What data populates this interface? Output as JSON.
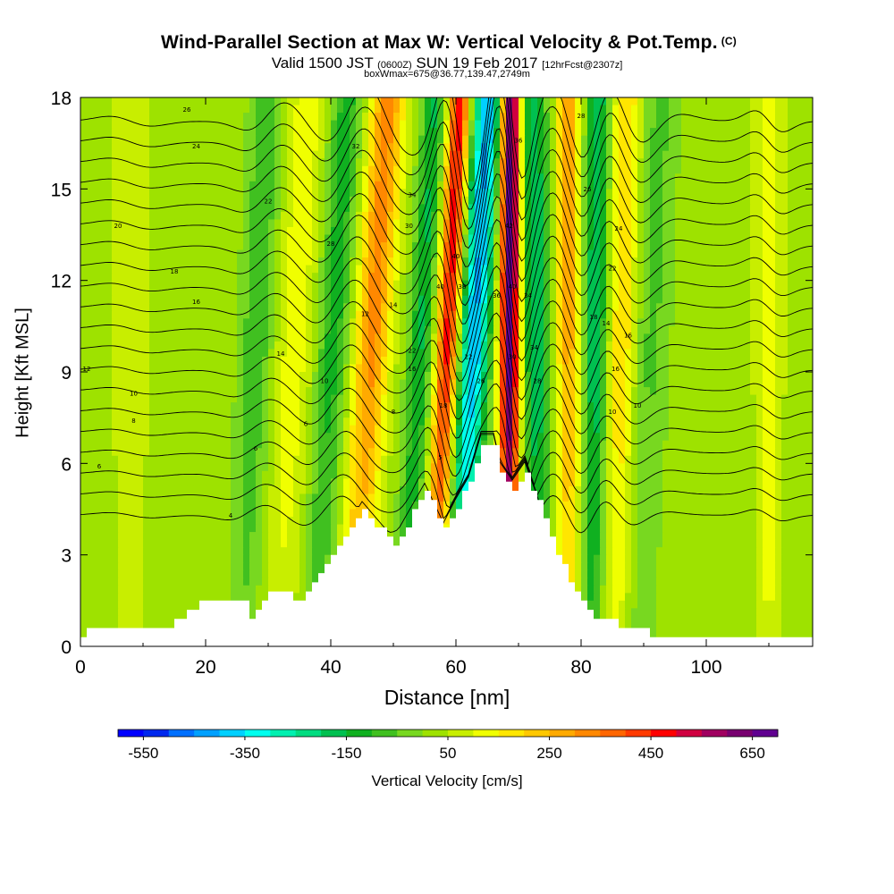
{
  "title": {
    "main": "Wind-Parallel Section at Max W: Vertical Velocity & Pot.Temp.",
    "copyright": "(C)",
    "line2_a": "Valid 1500 JST",
    "line2_b": "(0600Z)",
    "line2_c": "SUN 19 Feb 2017",
    "line2_d": "[12hrFcst@2307z]",
    "line3": "boxWmax=675@36.77,139.47,2749m"
  },
  "chart_data": {
    "type": "heatmap",
    "title": "Wind-Parallel Section at Max W: Vertical Velocity & Pot.Temp.",
    "xlabel": "Distance [nm]",
    "ylabel": "Height [Kft MSL]",
    "xlim": [
      0,
      117
    ],
    "ylim": [
      0,
      18
    ],
    "x_ticks": [
      0,
      20,
      40,
      60,
      80,
      100
    ],
    "y_ticks": [
      0,
      3,
      6,
      9,
      12,
      15,
      18
    ],
    "terrain_kft": {
      "x": [
        0,
        2,
        13,
        16,
        20,
        26,
        27,
        31,
        35,
        38,
        42,
        45,
        50,
        55,
        58,
        60,
        62,
        64,
        66,
        67,
        69,
        71,
        74,
        78,
        82,
        88,
        92,
        95,
        100,
        117
      ],
      "h": [
        0.3,
        0.6,
        0.6,
        1.0,
        1.6,
        1.6,
        0.9,
        1.9,
        1.5,
        2.5,
        3.5,
        4.5,
        3.3,
        5.1,
        3.8,
        4.6,
        5.3,
        6.7,
        6.7,
        5.8,
        5.2,
        5.8,
        4.1,
        2.1,
        1.0,
        0.6,
        0.3,
        0.3,
        0.3,
        0.3
      ]
    },
    "vertical_velocity_cms": {
      "note": "tilted updraft/downdraft bands: x position at base, tilt in nm per kft, peak value",
      "bands": [
        {
          "x_base": 8,
          "tilt": 0.0,
          "width": 3.0,
          "peak": 60
        },
        {
          "x_base": 27,
          "tilt": 0.22,
          "width": 2.6,
          "peak": -120
        },
        {
          "x_base": 33,
          "tilt": 0.25,
          "width": 3.0,
          "peak": 110
        },
        {
          "x_base": 39,
          "tilt": 0.28,
          "width": 2.6,
          "peak": -150
        },
        {
          "x_base": 45,
          "tilt": 0.32,
          "width": 2.8,
          "peak": 300
        },
        {
          "x_base": 53,
          "tilt": 0.28,
          "width": 2.0,
          "peak": -180
        },
        {
          "x_base": 57.5,
          "tilt": 0.24,
          "width": 1.8,
          "peak": 460
        },
        {
          "x_base": 61.5,
          "tilt": 0.28,
          "width": 2.4,
          "peak": -430
        },
        {
          "x_base": 68.5,
          "tilt": 0.02,
          "width": 1.6,
          "peak": 675
        },
        {
          "x_base": 73,
          "tilt": -0.05,
          "width": 2.2,
          "peak": -220
        },
        {
          "x_base": 78,
          "tilt": 0.0,
          "width": 2.0,
          "peak": 250
        },
        {
          "x_base": 82,
          "tilt": 0.05,
          "width": 2.0,
          "peak": -230
        },
        {
          "x_base": 86,
          "tilt": 0.1,
          "width": 2.4,
          "peak": 180
        },
        {
          "x_base": 90,
          "tilt": 0.2,
          "width": 3.0,
          "peak": -90
        },
        {
          "x_base": 110,
          "tilt": 0.0,
          "width": 2.0,
          "peak": 130
        }
      ],
      "max": 675
    },
    "potential_temperature_contours_c": {
      "interval": 2,
      "levels": [
        4,
        6,
        8,
        10,
        12,
        14,
        16,
        18,
        20,
        22,
        24,
        26,
        28,
        30,
        32,
        34,
        36,
        38,
        40,
        42
      ],
      "labels": [
        {
          "text": "26",
          "x": 17,
          "y": 17.6
        },
        {
          "text": "24",
          "x": 18.5,
          "y": 16.4
        },
        {
          "text": "22",
          "x": 30,
          "y": 14.6
        },
        {
          "text": "20",
          "x": 6,
          "y": 13.8
        },
        {
          "text": "18",
          "x": 15,
          "y": 12.3
        },
        {
          "text": "16",
          "x": 18.5,
          "y": 11.3
        },
        {
          "text": "14",
          "x": 32,
          "y": 9.6
        },
        {
          "text": "12",
          "x": 1,
          "y": 9.1
        },
        {
          "text": "10",
          "x": 8.5,
          "y": 8.3
        },
        {
          "text": "8",
          "x": 8.5,
          "y": 7.4
        },
        {
          "text": "6",
          "x": 28,
          "y": 6.5
        },
        {
          "text": "6",
          "x": 3,
          "y": 5.9
        },
        {
          "text": "4",
          "x": 24,
          "y": 4.3
        },
        {
          "text": "32",
          "x": 44,
          "y": 16.4
        },
        {
          "text": "34",
          "x": 53,
          "y": 14.8
        },
        {
          "text": "30",
          "x": 52.5,
          "y": 13.8
        },
        {
          "text": "28",
          "x": 40,
          "y": 13.2
        },
        {
          "text": "36",
          "x": 70,
          "y": 16.6
        },
        {
          "text": "40",
          "x": 60,
          "y": 12.8
        },
        {
          "text": "42",
          "x": 68.5,
          "y": 13.8
        },
        {
          "text": "40",
          "x": 57.5,
          "y": 11.8
        },
        {
          "text": "38",
          "x": 61,
          "y": 11.8
        },
        {
          "text": "36",
          "x": 66.5,
          "y": 11.5
        },
        {
          "text": "40",
          "x": 69,
          "y": 11.8
        },
        {
          "text": "34",
          "x": 71.5,
          "y": 11.5
        },
        {
          "text": "28",
          "x": 80,
          "y": 17.4
        },
        {
          "text": "26",
          "x": 81,
          "y": 15
        },
        {
          "text": "24",
          "x": 86,
          "y": 13.7
        },
        {
          "text": "22",
          "x": 85,
          "y": 12.4
        },
        {
          "text": "18",
          "x": 82,
          "y": 10.8
        },
        {
          "text": "14",
          "x": 84,
          "y": 10.6
        },
        {
          "text": "16",
          "x": 87.5,
          "y": 10.2
        },
        {
          "text": "14",
          "x": 50,
          "y": 11.2
        },
        {
          "text": "22",
          "x": 53,
          "y": 9.7
        },
        {
          "text": "16",
          "x": 53,
          "y": 9.1
        },
        {
          "text": "12",
          "x": 45.5,
          "y": 10.9
        },
        {
          "text": "10",
          "x": 39,
          "y": 8.7
        },
        {
          "text": "8",
          "x": 50,
          "y": 7.7
        },
        {
          "text": "6",
          "x": 36,
          "y": 7.3
        },
        {
          "text": "18",
          "x": 58,
          "y": 7.9
        },
        {
          "text": "22",
          "x": 62,
          "y": 9.5
        },
        {
          "text": "26",
          "x": 64,
          "y": 8.7
        },
        {
          "text": "34",
          "x": 72.5,
          "y": 9.8
        },
        {
          "text": "30",
          "x": 69,
          "y": 9.5
        },
        {
          "text": "28",
          "x": 73,
          "y": 8.7
        },
        {
          "text": "16",
          "x": 85.5,
          "y": 9.1
        },
        {
          "text": "10",
          "x": 85,
          "y": 7.7
        },
        {
          "text": "10",
          "x": 89,
          "y": 7.9
        },
        {
          "text": "5",
          "x": 57.5,
          "y": 6.2
        }
      ]
    },
    "colorbar": {
      "label": "Vertical Velocity [cm/s]",
      "tick_labels": [
        "-550",
        "-350",
        "-150",
        "50",
        "250",
        "450",
        "650"
      ],
      "tick_values": [
        -550,
        -350,
        -150,
        50,
        250,
        450,
        650
      ],
      "min": -600,
      "max": 700,
      "step": 50,
      "colors": [
        "#0000ff",
        "#0028ee",
        "#0070ff",
        "#00a0ff",
        "#00d0ff",
        "#00ffee",
        "#00f0b0",
        "#00dc80",
        "#00c050",
        "#10b020",
        "#40c020",
        "#78d820",
        "#9ee200",
        "#c8ee00",
        "#f0ff00",
        "#ffe600",
        "#ffc800",
        "#ffaa00",
        "#ff8800",
        "#ff6600",
        "#ff3a00",
        "#ff0000",
        "#d00040",
        "#a00060",
        "#780070",
        "#600090"
      ]
    }
  }
}
